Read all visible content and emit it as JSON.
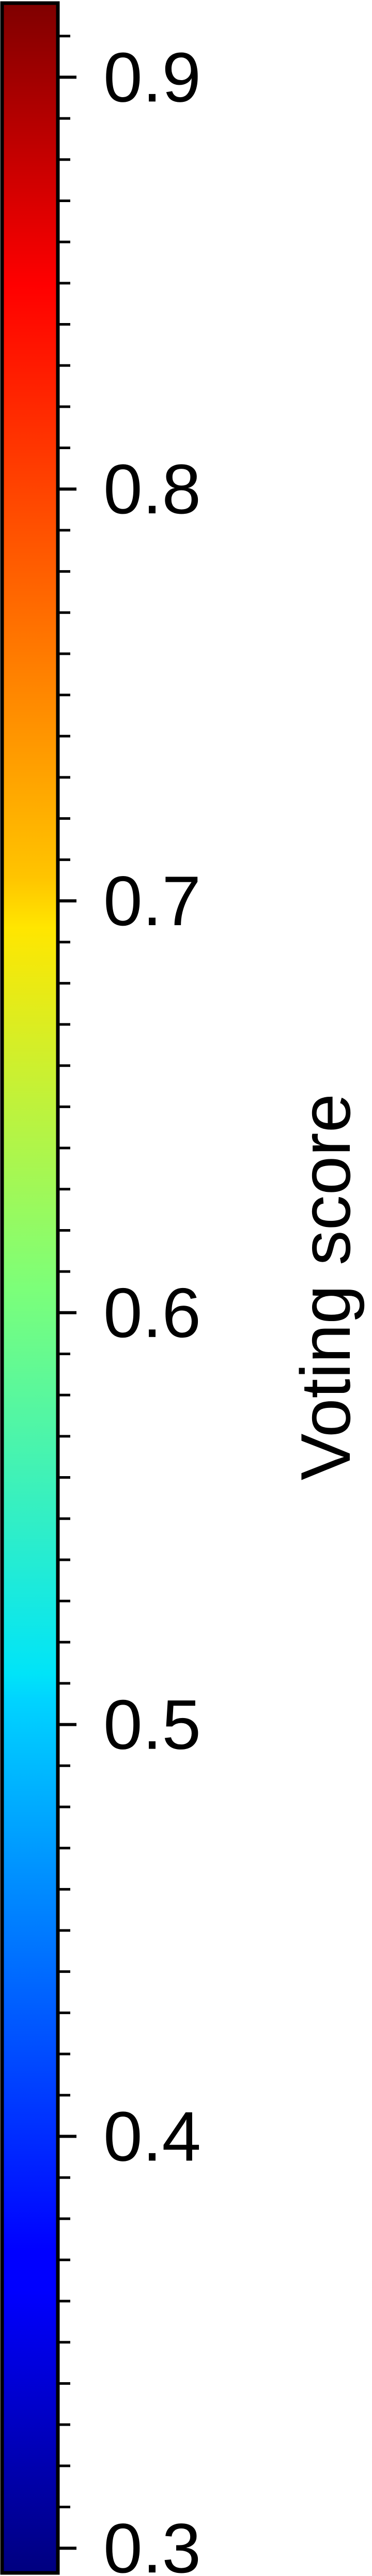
{
  "chart_data": {
    "type": "colorbar",
    "colormap": "jet",
    "orientation": "vertical",
    "label": "Voting score",
    "range": [
      0.294,
      0.918
    ],
    "major_ticks": [
      0.3,
      0.4,
      0.5,
      0.6,
      0.7,
      0.8,
      0.9
    ],
    "major_tick_labels": [
      "0.3",
      "0.4",
      "0.5",
      "0.6",
      "0.7",
      "0.8",
      "0.9"
    ],
    "minor_tick_step": 0.01,
    "color_stops": [
      {
        "offset": 0.0,
        "color": "#00007f"
      },
      {
        "offset": 0.11,
        "color": "#0000ff"
      },
      {
        "offset": 0.125,
        "color": "#0000ff"
      },
      {
        "offset": 0.34,
        "color": "#00d4ff"
      },
      {
        "offset": 0.35,
        "color": "#00e4f8"
      },
      {
        "offset": 0.5,
        "color": "#7cff79"
      },
      {
        "offset": 0.64,
        "color": "#ffe600"
      },
      {
        "offset": 0.66,
        "color": "#ffc400"
      },
      {
        "offset": 0.89,
        "color": "#ff0000"
      },
      {
        "offset": 1.0,
        "color": "#7f0000"
      }
    ],
    "frame_color": "#000000"
  }
}
